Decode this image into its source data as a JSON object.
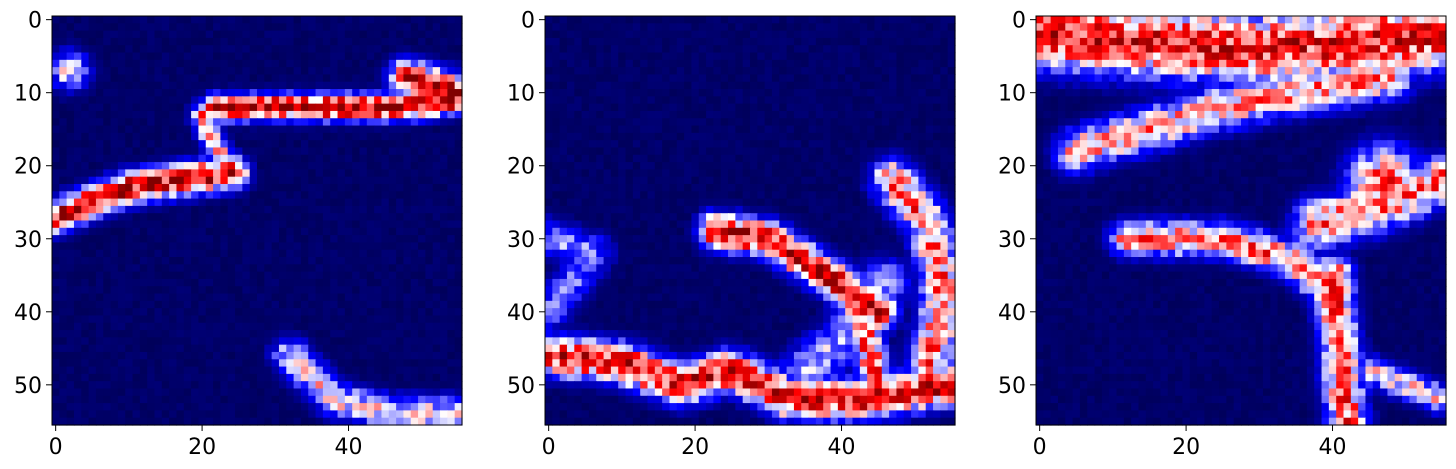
{
  "chart_data": [
    {
      "type": "heatmap",
      "title": "",
      "xlabel": "",
      "ylabel": "",
      "grid_size": [
        56,
        56
      ],
      "xlim": [
        -0.5,
        55.5
      ],
      "ylim": [
        55.5,
        -0.5
      ],
      "x_ticks": [
        0,
        20,
        40
      ],
      "y_ticks": [
        0,
        10,
        20,
        30,
        40,
        50
      ],
      "colormap": "seismic",
      "colors": {
        "low": "#00004c",
        "mid_blue": "#0000ff",
        "white": "#ffffff",
        "red": "#ff0000",
        "high": "#800000"
      },
      "pattern": "two diagonal red streaks in upper half, curved blue/red band at bottom right",
      "features": [
        {
          "kind": "streak",
          "points": [
            [
              0,
              27
            ],
            [
              10,
              23
            ],
            [
              24,
              21
            ]
          ],
          "width": 1.6,
          "intensity": 0.92
        },
        {
          "kind": "streak",
          "points": [
            [
              22,
              12
            ],
            [
              35,
              12
            ],
            [
              48,
              12
            ],
            [
              55,
              11
            ]
          ],
          "width": 1.3,
          "intensity": 0.95
        },
        {
          "kind": "streak",
          "points": [
            [
              48,
              8
            ],
            [
              55,
              10
            ]
          ],
          "width": 1.8,
          "intensity": 0.9
        },
        {
          "kind": "streak",
          "points": [
            [
              20,
              13
            ],
            [
              22,
              18
            ],
            [
              25,
              21
            ]
          ],
          "width": 1.2,
          "intensity": 0.7
        },
        {
          "kind": "blob",
          "points": [
            [
              2,
              7
            ]
          ],
          "width": 2.0,
          "intensity": 0.55
        },
        {
          "kind": "streak",
          "points": [
            [
              32,
              46
            ],
            [
              38,
              52
            ],
            [
              46,
              54
            ],
            [
              55,
              54
            ]
          ],
          "width": 1.8,
          "intensity": 0.55
        }
      ]
    },
    {
      "type": "heatmap",
      "title": "",
      "xlabel": "",
      "ylabel": "",
      "grid_size": [
        56,
        56
      ],
      "xlim": [
        -0.5,
        55.5
      ],
      "ylim": [
        55.5,
        -0.5
      ],
      "x_ticks": [
        0,
        20,
        40
      ],
      "y_ticks": [
        0,
        10,
        20,
        30,
        40,
        50
      ],
      "colormap": "seismic",
      "colors": {
        "low": "#00004c",
        "mid_blue": "#0000ff",
        "white": "#ffffff",
        "red": "#ff0000",
        "high": "#800000"
      },
      "pattern": "red band across bottom, diagonal red streak from (28,28) to (45,40), vertical band on right edge",
      "features": [
        {
          "kind": "streak",
          "points": [
            [
              0,
              46
            ],
            [
              10,
              47
            ],
            [
              18,
              50
            ],
            [
              25,
              48
            ],
            [
              33,
              52
            ],
            [
              44,
              52
            ],
            [
              55,
              50
            ]
          ],
          "width": 2.0,
          "intensity": 0.88
        },
        {
          "kind": "streak",
          "points": [
            [
              23,
              29
            ],
            [
              30,
              30
            ],
            [
              38,
              35
            ],
            [
              45,
              40
            ]
          ],
          "width": 1.8,
          "intensity": 0.92
        },
        {
          "kind": "streak",
          "points": [
            [
              47,
              22
            ],
            [
              52,
              28
            ],
            [
              54,
              38
            ],
            [
              52,
              48
            ]
          ],
          "width": 2.2,
          "intensity": 0.7
        },
        {
          "kind": "streak",
          "points": [
            [
              42,
              38
            ],
            [
              44,
              46
            ],
            [
              45,
              52
            ]
          ],
          "width": 1.6,
          "intensity": 0.75
        },
        {
          "kind": "streak",
          "points": [
            [
              0,
              30
            ],
            [
              6,
              32
            ],
            [
              0,
              40
            ]
          ],
          "width": 2.0,
          "intensity": 0.4
        },
        {
          "kind": "streak",
          "points": [
            [
              35,
              48
            ],
            [
              40,
              44
            ],
            [
              46,
              36
            ]
          ],
          "width": 2.5,
          "intensity": 0.45
        }
      ]
    },
    {
      "type": "heatmap",
      "title": "",
      "xlabel": "",
      "ylabel": "",
      "grid_size": [
        56,
        56
      ],
      "xlim": [
        -0.5,
        55.5
      ],
      "ylim": [
        55.5,
        -0.5
      ],
      "x_ticks": [
        0,
        20,
        40
      ],
      "y_ticks": [
        0,
        10,
        20,
        30,
        40,
        50
      ],
      "colormap": "seismic",
      "colors": {
        "low": "#00004c",
        "mid_blue": "#0000ff",
        "white": "#ffffff",
        "red": "#ff0000",
        "high": "#800000"
      },
      "pattern": "dense red/white noise along top rows, scattered texture, vertical band near x=40 descending to bottom",
      "features": [
        {
          "kind": "streak",
          "points": [
            [
              0,
              2
            ],
            [
              15,
              3
            ],
            [
              30,
              4
            ],
            [
              45,
              3
            ],
            [
              55,
              2
            ]
          ],
          "width": 3.5,
          "intensity": 0.85
        },
        {
          "kind": "streak",
          "points": [
            [
              5,
              18
            ],
            [
              15,
              15
            ],
            [
              25,
              12
            ],
            [
              35,
              10
            ],
            [
              48,
              8
            ]
          ],
          "width": 2.2,
          "intensity": 0.65
        },
        {
          "kind": "streak",
          "points": [
            [
              12,
              30
            ],
            [
              25,
              30
            ],
            [
              35,
              33
            ],
            [
              40,
              38
            ]
          ],
          "width": 1.8,
          "intensity": 0.7
        },
        {
          "kind": "streak",
          "points": [
            [
              40,
              35
            ],
            [
              41,
              45
            ],
            [
              42,
              55
            ]
          ],
          "width": 2.0,
          "intensity": 0.75
        },
        {
          "kind": "streak",
          "points": [
            [
              38,
              28
            ],
            [
              48,
              25
            ],
            [
              55,
              22
            ]
          ],
          "width": 2.5,
          "intensity": 0.7
        },
        {
          "kind": "blob",
          "points": [
            [
              47,
              22
            ]
          ],
          "width": 3.5,
          "intensity": 0.75
        },
        {
          "kind": "streak",
          "points": [
            [
              45,
              48
            ],
            [
              50,
              50
            ],
            [
              55,
              52
            ]
          ],
          "width": 1.5,
          "intensity": 0.55
        }
      ]
    }
  ]
}
